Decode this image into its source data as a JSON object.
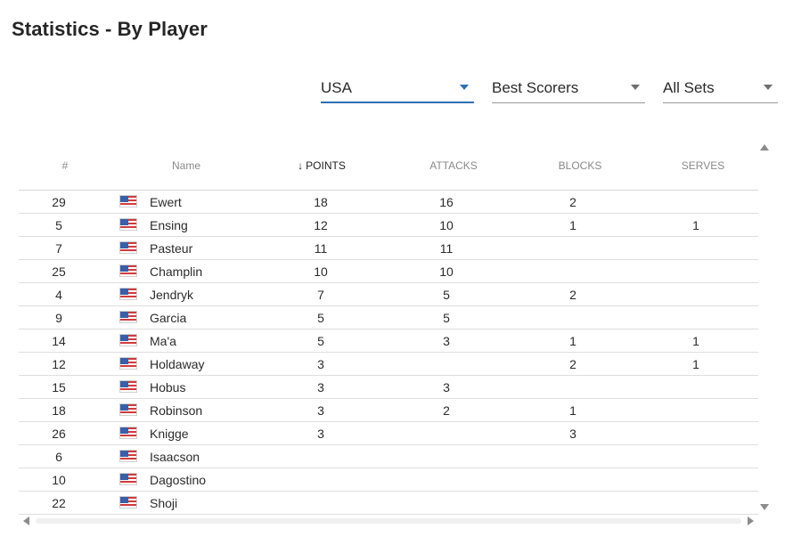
{
  "title": "Statistics - By Player",
  "filters": [
    {
      "label": "USA",
      "active": true
    },
    {
      "label": "Best Scorers",
      "active": false
    },
    {
      "label": "All Sets",
      "active": false
    }
  ],
  "columns": [
    "#",
    "Name",
    "POINTS",
    "ATTACKS",
    "BLOCKS",
    "SERVES"
  ],
  "sort": {
    "column": "POINTS",
    "direction": "desc",
    "icon": "arrow-down-icon"
  },
  "rows": [
    {
      "number": "29",
      "flag": "usa-flag-icon",
      "name": "Ewert",
      "points": "18",
      "attacks": "16",
      "blocks": "2",
      "serves": ""
    },
    {
      "number": "5",
      "flag": "usa-flag-icon",
      "name": "Ensing",
      "points": "12",
      "attacks": "10",
      "blocks": "1",
      "serves": "1"
    },
    {
      "number": "7",
      "flag": "usa-flag-icon",
      "name": "Pasteur",
      "points": "11",
      "attacks": "11",
      "blocks": "",
      "serves": ""
    },
    {
      "number": "25",
      "flag": "usa-flag-icon",
      "name": "Champlin",
      "points": "10",
      "attacks": "10",
      "blocks": "",
      "serves": ""
    },
    {
      "number": "4",
      "flag": "usa-flag-icon",
      "name": "Jendryk",
      "points": "7",
      "attacks": "5",
      "blocks": "2",
      "serves": ""
    },
    {
      "number": "9",
      "flag": "usa-flag-icon",
      "name": "Garcia",
      "points": "5",
      "attacks": "5",
      "blocks": "",
      "serves": ""
    },
    {
      "number": "14",
      "flag": "usa-flag-icon",
      "name": "Ma'a",
      "points": "5",
      "attacks": "3",
      "blocks": "1",
      "serves": "1"
    },
    {
      "number": "12",
      "flag": "usa-flag-icon",
      "name": "Holdaway",
      "points": "3",
      "attacks": "",
      "blocks": "2",
      "serves": "1"
    },
    {
      "number": "15",
      "flag": "usa-flag-icon",
      "name": "Hobus",
      "points": "3",
      "attacks": "3",
      "blocks": "",
      "serves": ""
    },
    {
      "number": "18",
      "flag": "usa-flag-icon",
      "name": "Robinson",
      "points": "3",
      "attacks": "2",
      "blocks": "1",
      "serves": ""
    },
    {
      "number": "26",
      "flag": "usa-flag-icon",
      "name": "Knigge",
      "points": "3",
      "attacks": "",
      "blocks": "3",
      "serves": ""
    },
    {
      "number": "6",
      "flag": "usa-flag-icon",
      "name": "Isaacson",
      "points": "",
      "attacks": "",
      "blocks": "",
      "serves": ""
    },
    {
      "number": "10",
      "flag": "usa-flag-icon",
      "name": "Dagostino",
      "points": "",
      "attacks": "",
      "blocks": "",
      "serves": ""
    },
    {
      "number": "22",
      "flag": "usa-flag-icon",
      "name": "Shoji",
      "points": "",
      "attacks": "",
      "blocks": "",
      "serves": ""
    }
  ],
  "colors": {
    "accent": "#2f6fb3",
    "header_text": "#8a8a8a",
    "divider": "#dedede"
  }
}
